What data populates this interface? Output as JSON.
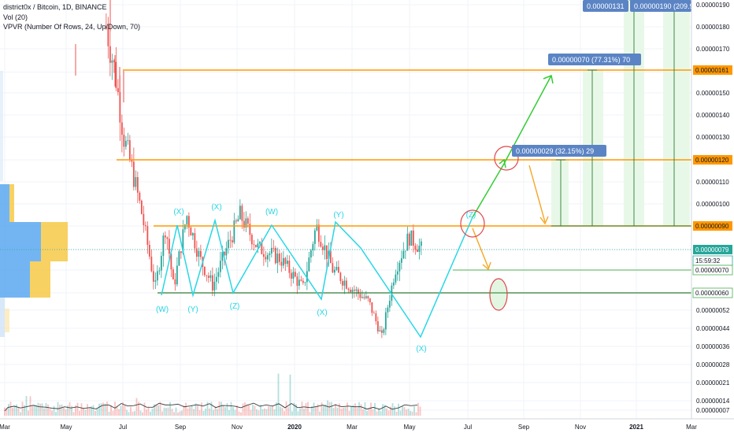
{
  "header": {
    "symbol_line": "district0x / Bitcoin, 1D, BINANCE",
    "vol_line": "Vol (20)",
    "vpvr_line": "VPVR (Number Of Rows, 24, Up/Down, 70)"
  },
  "colors": {
    "up": "#26a69a",
    "down": "#ef5350",
    "cyan_wave": "#26d7e6",
    "green_arrow": "#33cc33",
    "orange": "#f5a623",
    "level_orange": "#ff9800",
    "level_green": "#4caf50",
    "label_blue": "#5b84c4",
    "price_teal": "#26a69a"
  },
  "price_axis": {
    "ticks": [
      "0.00000190",
      "0.00000180",
      "0.00000170",
      "0.00000160",
      "0.00000150",
      "0.00000140",
      "0.00000130",
      "0.00000120",
      "0.00000110",
      "0.00000100",
      "0.00000090",
      "0.00000079",
      "0.00000070",
      "0.00000060",
      "0.00000052",
      "0.00000044",
      "0.00000036",
      "0.00000028",
      "0.00000021",
      "0.00000014",
      "0.00000007"
    ],
    "levels": [
      {
        "label": "0.00000161",
        "value": 161,
        "kind": "orange"
      },
      {
        "label": "0.00000120",
        "value": 120,
        "kind": "orange"
      },
      {
        "label": "0.00000090",
        "value": 90,
        "kind": "orange"
      },
      {
        "label": "0.00000079",
        "value": 79,
        "kind": "teal"
      },
      {
        "label": "15:59:32",
        "value": 77,
        "kind": "countdown"
      },
      {
        "label": "0.00000070",
        "value": 70,
        "kind": "green"
      },
      {
        "label": "0.00000060",
        "value": 60,
        "kind": "green"
      }
    ]
  },
  "time_axis": [
    "Mar",
    "May",
    "Jul",
    "Sep",
    "Nov",
    "2020",
    "Mar",
    "May",
    "Jul",
    "Sep",
    "Nov",
    "2021",
    "Mar"
  ],
  "wave_labels": [
    "(X)",
    "(X)",
    "(W)",
    "(Y)",
    "(Z)",
    "(W)",
    "(Y)",
    "(X)",
    "(X)",
    "(Z)"
  ],
  "targets": [
    {
      "text": "0.00000029 (32.15%) 29"
    },
    {
      "text": "0.00000070 (77.31%) 70"
    },
    {
      "text": "0.00000131"
    },
    {
      "text": "0.00000190 (209.92"
    }
  ],
  "chart_data": {
    "type": "candlestick",
    "pair": "district0x / Bitcoin",
    "interval": "1D",
    "exchange": "BINANCE",
    "unit_note": "price in satoshi-scale BTC (e.g. 79 = 0.00000079)",
    "current_price": 79,
    "countdown": "15:59:32",
    "y_range": [
      0,
      195
    ],
    "close_path": [
      {
        "x": "Jun 25 2019",
        "y": 180
      },
      {
        "x": "Jul 05 2019",
        "y": 160
      },
      {
        "x": "Jul 15 2019",
        "y": 130
      },
      {
        "x": "Jul 25 2019",
        "y": 115
      },
      {
        "x": "Aug 05 2019",
        "y": 95
      },
      {
        "x": "Aug 20 2019",
        "y": 62
      },
      {
        "x": "Sep 01 2019",
        "y": 90
      },
      {
        "x": "Sep 10 2019",
        "y": 62
      },
      {
        "x": "Sep 25 2019",
        "y": 95
      },
      {
        "x": "Oct 10 2019",
        "y": 75
      },
      {
        "x": "Oct 25 2019",
        "y": 63
      },
      {
        "x": "Nov 10 2019",
        "y": 80
      },
      {
        "x": "Nov 25 2019",
        "y": 95
      },
      {
        "x": "Dec 15 2019",
        "y": 80
      },
      {
        "x": "Jan 10 2020",
        "y": 75
      },
      {
        "x": "Feb 05 2020",
        "y": 62
      },
      {
        "x": "Feb 20 2020",
        "y": 90
      },
      {
        "x": "Mar 10 2020",
        "y": 70
      },
      {
        "x": "Apr 01 2020",
        "y": 62
      },
      {
        "x": "Apr 20 2020",
        "y": 56
      },
      {
        "x": "May 05 2020",
        "y": 40
      },
      {
        "x": "May 20 2020",
        "y": 70
      },
      {
        "x": "Jun 05 2020",
        "y": 85
      },
      {
        "x": "Jun 20 2020",
        "y": 79
      }
    ]
  }
}
